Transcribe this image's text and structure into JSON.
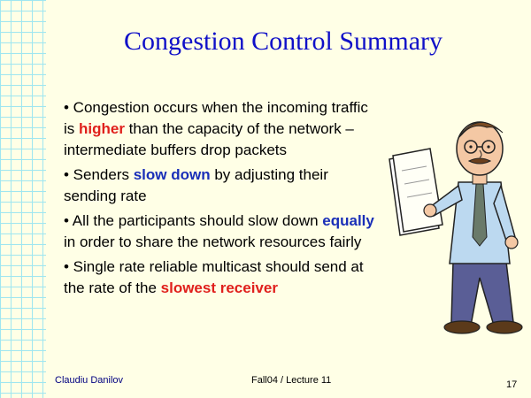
{
  "slide": {
    "title": "Congestion Control Summary",
    "bullets": [
      {
        "before": "• Congestion occurs when the incoming traffic is ",
        "highlight": "higher",
        "after": " than the capacity of the network – intermediate buffers drop packets"
      },
      {
        "before": "• Senders ",
        "highlight": "slow down",
        "after": " by adjusting their sending rate"
      },
      {
        "before": "• All the participants should slow down ",
        "highlight": "equally",
        "after": " in order to share the network resources fairly"
      },
      {
        "before": "• Single rate reliable multicast should send at the rate of the ",
        "highlight": "slowest receiver",
        "after": ""
      }
    ],
    "footer": {
      "author": "Claudiu Danilov",
      "course": "Fall04 / Lecture 11",
      "page_number": "17"
    }
  },
  "colors": {
    "background": "#ffffe6",
    "title": "#1010c8",
    "highlight_red": "#e0201c",
    "highlight_blue": "#1a2fb8",
    "grid_lines": "#9fe6f0"
  },
  "icons": {
    "clipart": "man-holding-paper-illustration"
  }
}
